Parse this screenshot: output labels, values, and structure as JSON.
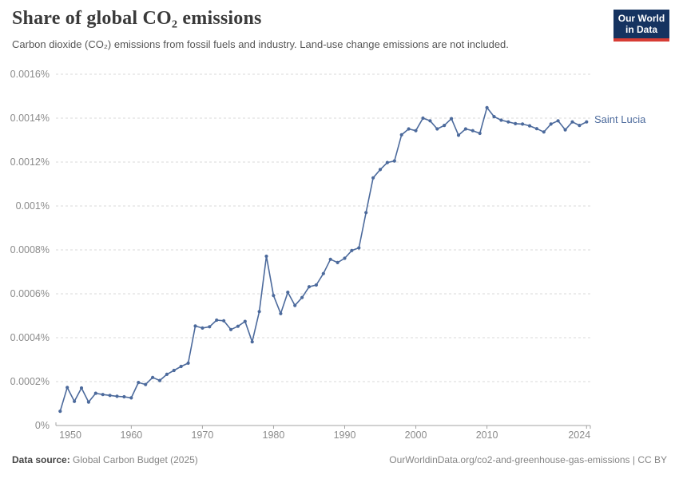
{
  "header": {
    "title": "Share of global CO₂ emissions",
    "subtitle": "Carbon dioxide (CO₂) emissions from fossil fuels and industry. Land-use change emissions are not included.",
    "logo": {
      "line1": "Our World",
      "line2": "in Data",
      "bg_color": "#153360",
      "accent_color": "#d73c34"
    }
  },
  "footer": {
    "source_label": "Data source:",
    "source_value": " Global Carbon Budget (2025)",
    "link_text": "OurWorldinData.org/co2-and-greenhouse-gas-emissions | CC BY"
  },
  "chart_data": {
    "type": "line",
    "title": "Share of global CO₂ emissions",
    "series_label": "Saint Lucia",
    "line_color": "#4c6a9c",
    "grid": "horizontal-dashed",
    "legend_position": "end-of-line",
    "xlim": [
      1949.4,
      2024.5
    ],
    "ylim": [
      0,
      0.0016
    ],
    "x_ticks": [
      1950,
      1960,
      1970,
      1980,
      1990,
      2000,
      2010,
      2024
    ],
    "y_ticks": [
      0,
      0.0002,
      0.0004,
      0.0006,
      0.0008,
      0.001,
      0.0012,
      0.0014,
      0.0016
    ],
    "y_tick_labels": [
      "0%",
      "0.0002%",
      "0.0004%",
      "0.0006%",
      "0.0008%",
      "0.001%",
      "0.0012%",
      "0.0014%",
      "0.0016%"
    ],
    "x": [
      1950,
      1951,
      1952,
      1953,
      1954,
      1955,
      1956,
      1957,
      1958,
      1959,
      1960,
      1961,
      1962,
      1963,
      1964,
      1965,
      1966,
      1967,
      1968,
      1969,
      1970,
      1971,
      1972,
      1973,
      1974,
      1975,
      1976,
      1977,
      1978,
      1979,
      1980,
      1981,
      1982,
      1983,
      1984,
      1985,
      1986,
      1987,
      1988,
      1989,
      1990,
      1991,
      1992,
      1993,
      1994,
      1995,
      1996,
      1997,
      1998,
      1999,
      2000,
      2001,
      2002,
      2003,
      2004,
      2005,
      2006,
      2007,
      2008,
      2009,
      2010,
      2011,
      2012,
      2013,
      2014,
      2015,
      2016,
      2017,
      2018,
      2019,
      2020,
      2021,
      2022,
      2023,
      2024
    ],
    "y": [
      6.5e-05,
      0.000173,
      0.00011,
      0.000171,
      0.000107,
      0.000147,
      0.000141,
      0.000137,
      0.000133,
      0.000131,
      0.000126,
      0.000196,
      0.000187,
      0.000219,
      0.000205,
      0.000233,
      0.000251,
      0.000269,
      0.000284,
      0.000453,
      0.000444,
      0.00045,
      0.00048,
      0.000477,
      0.000437,
      0.000452,
      0.000474,
      0.000381,
      0.000519,
      0.000771,
      0.000592,
      0.00051,
      0.000607,
      0.000547,
      0.000583,
      0.000632,
      0.00064,
      0.000692,
      0.000757,
      0.000742,
      0.000762,
      0.000797,
      0.000809,
      0.00097,
      0.001128,
      0.001166,
      0.001198,
      0.001205,
      0.001324,
      0.001351,
      0.001343,
      0.0014,
      0.001388,
      0.001351,
      0.001367,
      0.001398,
      0.001322,
      0.001351,
      0.001343,
      0.001331,
      0.001448,
      0.001407,
      0.001391,
      0.001383,
      0.001375,
      0.001373,
      0.001365,
      0.001352,
      0.001337,
      0.001373,
      0.001388,
      0.001347,
      0.001383,
      0.001367,
      0.001383
    ],
    "axis_text_color": "#8b8b8b",
    "gridline_color": "#dadada",
    "axis_line_color": "#a3a3a3"
  }
}
